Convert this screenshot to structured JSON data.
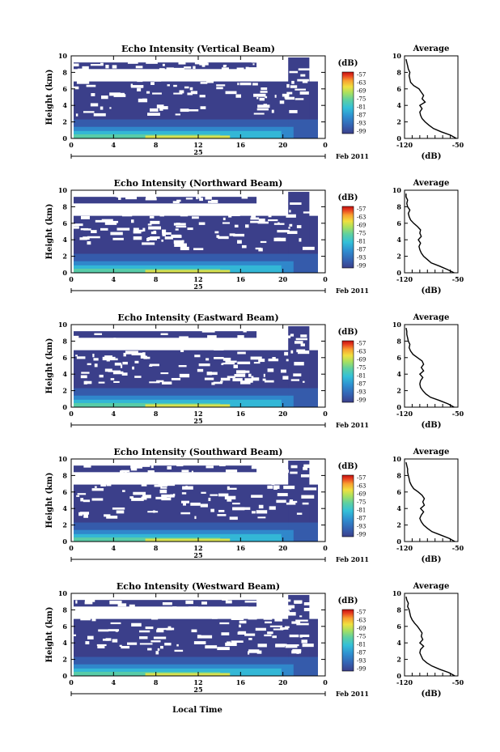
{
  "figure": {
    "date_label": "Feb 2011",
    "x_axis_label": "Local Time",
    "day_label": "25",
    "y_label": "Height (km)",
    "colorbar_unit": "(dB)",
    "avg_title": "Average",
    "avg_xlabel": "(dB)"
  },
  "chart_data": [
    {
      "type": "heatmap",
      "title": "Echo Intensity (Vertical Beam)",
      "xlabel": "Local Time",
      "ylabel": "Height (km)",
      "xlim": [
        0,
        24
      ],
      "ylim": [
        0,
        10
      ],
      "xticks": [
        "0",
        "4",
        "8",
        "12",
        "16",
        "20",
        "0"
      ],
      "yticks": [
        "0",
        "2",
        "4",
        "6",
        "8",
        "10"
      ],
      "colorbar": {
        "label": "(dB)",
        "ticks": [
          "-57",
          "-63",
          "-69",
          "-75",
          "-81",
          "-87",
          "-93",
          "-99"
        ]
      },
      "average_profile": {
        "title": "Average",
        "xlabel": "(dB)",
        "xlim": [
          -120,
          -50
        ],
        "xticks": [
          "-120",
          "-50"
        ],
        "height": [
          0,
          0.4,
          0.8,
          1.2,
          1.6,
          2.0,
          2.4,
          2.8,
          3.2,
          3.6,
          4.0,
          4.4,
          4.8,
          5.2,
          5.6,
          6.0,
          6.4,
          6.8,
          7.2,
          7.6,
          8.0,
          8.4,
          8.8,
          9.2,
          9.6
        ],
        "db": [
          -52,
          -60,
          -72,
          -82,
          -88,
          -93,
          -97,
          -99,
          -100,
          -97,
          -100,
          -93,
          -97,
          -95,
          -98,
          -101,
          -108,
          -112,
          -113,
          -114,
          -113,
          -115,
          -116,
          -117,
          -118
        ]
      }
    },
    {
      "type": "heatmap",
      "title": "Echo Intensity (Northward Beam)",
      "xlabel": "Local Time",
      "ylabel": "Height (km)",
      "xlim": [
        0,
        24
      ],
      "ylim": [
        0,
        10
      ],
      "xticks": [
        "0",
        "4",
        "8",
        "12",
        "16",
        "20",
        "0"
      ],
      "yticks": [
        "0",
        "2",
        "4",
        "6",
        "8",
        "10"
      ],
      "colorbar": {
        "label": "(dB)",
        "ticks": [
          "-57",
          "-63",
          "-69",
          "-75",
          "-81",
          "-87",
          "-93",
          "-99"
        ]
      },
      "average_profile": {
        "title": "Average",
        "xlabel": "(dB)",
        "xlim": [
          -120,
          -50
        ],
        "xticks": [
          "-120",
          "-50"
        ],
        "height": [
          0,
          0.4,
          0.8,
          1.2,
          1.6,
          2.0,
          2.4,
          2.8,
          3.2,
          3.6,
          4.0,
          4.4,
          4.8,
          5.2,
          5.6,
          6.0,
          6.4,
          6.8,
          7.2,
          7.6,
          8.0,
          8.4,
          8.8,
          9.2,
          9.6
        ],
        "db": [
          -55,
          -64,
          -74,
          -85,
          -90,
          -95,
          -98,
          -100,
          -101,
          -99,
          -102,
          -98,
          -100,
          -99,
          -103,
          -108,
          -112,
          -114,
          -115,
          -113,
          -116,
          -117,
          -116,
          -118,
          -118
        ]
      }
    },
    {
      "type": "heatmap",
      "title": "Echo Intensity (Eastward Beam)",
      "xlabel": "Local Time",
      "ylabel": "Height (km)",
      "xlim": [
        0,
        24
      ],
      "ylim": [
        0,
        10
      ],
      "xticks": [
        "0",
        "4",
        "8",
        "12",
        "16",
        "20",
        "0"
      ],
      "yticks": [
        "0",
        "2",
        "4",
        "6",
        "8",
        "10"
      ],
      "colorbar": {
        "label": "(dB)",
        "ticks": [
          "-57",
          "-63",
          "-69",
          "-75",
          "-81",
          "-87",
          "-93",
          "-99"
        ]
      },
      "average_profile": {
        "title": "Average",
        "xlabel": "(dB)",
        "xlim": [
          -120,
          -50
        ],
        "xticks": [
          "-120",
          "-50"
        ],
        "height": [
          0,
          0.4,
          0.8,
          1.2,
          1.6,
          2.0,
          2.4,
          2.8,
          3.2,
          3.6,
          4.0,
          4.4,
          4.8,
          5.2,
          5.6,
          6.0,
          6.4,
          6.8,
          7.2,
          7.6,
          8.0,
          8.4,
          8.8,
          9.2,
          9.6
        ],
        "db": [
          -55,
          -63,
          -74,
          -86,
          -92,
          -96,
          -99,
          -100,
          -99,
          -96,
          -100,
          -95,
          -98,
          -95,
          -97,
          -103,
          -109,
          -112,
          -114,
          -113,
          -115,
          -116,
          -117,
          -117,
          -118
        ]
      }
    },
    {
      "type": "heatmap",
      "title": "Echo Intensity (Southward Beam)",
      "xlabel": "Local Time",
      "ylabel": "Height (km)",
      "xlim": [
        0,
        24
      ],
      "ylim": [
        0,
        10
      ],
      "xticks": [
        "0",
        "4",
        "8",
        "12",
        "16",
        "20",
        "0"
      ],
      "yticks": [
        "0",
        "2",
        "4",
        "6",
        "8",
        "10"
      ],
      "colorbar": {
        "label": "(dB)",
        "ticks": [
          "-57",
          "-63",
          "-69",
          "-75",
          "-81",
          "-87",
          "-93",
          "-99"
        ]
      },
      "average_profile": {
        "title": "Average",
        "xlabel": "(dB)",
        "xlim": [
          -120,
          -50
        ],
        "xticks": [
          "-120",
          "-50"
        ],
        "height": [
          0,
          0.4,
          0.8,
          1.2,
          1.6,
          2.0,
          2.4,
          2.8,
          3.2,
          3.6,
          4.0,
          4.4,
          4.8,
          5.2,
          5.6,
          6.0,
          6.4,
          6.8,
          7.2,
          7.6,
          8.0,
          8.4,
          8.8,
          9.2,
          9.6
        ],
        "db": [
          -54,
          -62,
          -73,
          -84,
          -90,
          -95,
          -98,
          -100,
          -98,
          -95,
          -99,
          -94,
          -96,
          -94,
          -97,
          -102,
          -108,
          -111,
          -113,
          -114,
          -115,
          -116,
          -116,
          -117,
          -118
        ]
      }
    },
    {
      "type": "heatmap",
      "title": "Echo Intensity (Westward Beam)",
      "xlabel": "Local Time",
      "ylabel": "Height (km)",
      "xlim": [
        0,
        24
      ],
      "ylim": [
        0,
        10
      ],
      "xticks": [
        "0",
        "4",
        "8",
        "12",
        "16",
        "20",
        "0"
      ],
      "yticks": [
        "0",
        "2",
        "4",
        "6",
        "8",
        "10"
      ],
      "colorbar": {
        "label": "(dB)",
        "ticks": [
          "-57",
          "-63",
          "-69",
          "-75",
          "-81",
          "-87",
          "-93",
          "-99"
        ]
      },
      "average_profile": {
        "title": "Average",
        "xlabel": "(dB)",
        "xlim": [
          -120,
          -50
        ],
        "xticks": [
          "-120",
          "-50"
        ],
        "height": [
          0,
          0.4,
          0.8,
          1.2,
          1.6,
          2.0,
          2.4,
          2.8,
          3.2,
          3.6,
          4.0,
          4.4,
          4.8,
          5.2,
          5.6,
          6.0,
          6.4,
          6.8,
          7.2,
          7.6,
          8.0,
          8.4,
          8.8,
          9.2,
          9.6
        ],
        "db": [
          -54,
          -62,
          -74,
          -84,
          -91,
          -96,
          -98,
          -100,
          -99,
          -95,
          -100,
          -96,
          -98,
          -97,
          -100,
          -103,
          -107,
          -110,
          -112,
          -113,
          -114,
          -116,
          -115,
          -117,
          -118
        ]
      }
    }
  ],
  "colors": {
    "background_echo": "#3b3f8a",
    "colormap": [
      "#3b3f8a",
      "#3560b0",
      "#2f8fd0",
      "#34c0d8",
      "#5fd0a0",
      "#a8e060",
      "#f0e040",
      "#f8a030",
      "#e84020",
      "#c01010"
    ]
  }
}
